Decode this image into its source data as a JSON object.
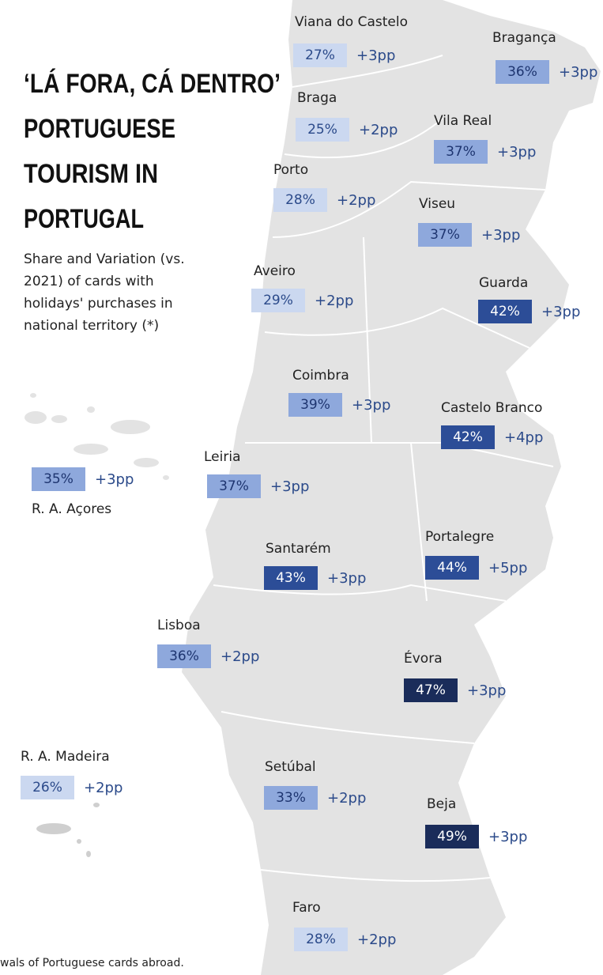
{
  "title": [
    "‘LÁ FORA, CÁ DENTRO’",
    "PORTUGUESE",
    "TOURISM IN",
    "PORTUGAL"
  ],
  "subtitle": [
    "Share and Variation (vs.",
    "2021) of cards with",
    "holidays' purchases in",
    "national territory (*)"
  ],
  "regions": [
    {
      "name": "Viana do Castelo",
      "share": 27,
      "share_label": "27%",
      "variation": "+3pp"
    },
    {
      "name": "Bragança",
      "share": 36,
      "share_label": "36%",
      "variation": "+3pp"
    },
    {
      "name": "Braga",
      "share": 25,
      "share_label": "25%",
      "variation": "+2pp"
    },
    {
      "name": "Vila Real",
      "share": 37,
      "share_label": "37%",
      "variation": "+3pp"
    },
    {
      "name": "Porto",
      "share": 28,
      "share_label": "28%",
      "variation": "+2pp"
    },
    {
      "name": "Viseu",
      "share": 37,
      "share_label": "37%",
      "variation": "+3pp"
    },
    {
      "name": "Aveiro",
      "share": 29,
      "share_label": "29%",
      "variation": "+2pp"
    },
    {
      "name": "Guarda",
      "share": 42,
      "share_label": "42%",
      "variation": "+3pp"
    },
    {
      "name": "Coimbra",
      "share": 39,
      "share_label": "39%",
      "variation": "+3pp"
    },
    {
      "name": "Castelo Branco",
      "share": 42,
      "share_label": "42%",
      "variation": "+4pp"
    },
    {
      "name": "R. A. Açores",
      "share": 35,
      "share_label": "35%",
      "variation": "+3pp"
    },
    {
      "name": "Leiria",
      "share": 37,
      "share_label": "37%",
      "variation": "+3pp"
    },
    {
      "name": "Santarém",
      "share": 43,
      "share_label": "43%",
      "variation": "+3pp"
    },
    {
      "name": "Portalegre",
      "share": 44,
      "share_label": "44%",
      "variation": "+5pp"
    },
    {
      "name": "Lisboa",
      "share": 36,
      "share_label": "36%",
      "variation": "+2pp"
    },
    {
      "name": "Évora",
      "share": 47,
      "share_label": "47%",
      "variation": "+3pp"
    },
    {
      "name": "R. A. Madeira",
      "share": 26,
      "share_label": "26%",
      "variation": "+2pp"
    },
    {
      "name": "Setúbal",
      "share": 33,
      "share_label": "33%",
      "variation": "+2pp"
    },
    {
      "name": "Beja",
      "share": 49,
      "share_label": "49%",
      "variation": "+3pp"
    },
    {
      "name": "Faro",
      "share": 28,
      "share_label": "28%",
      "variation": "+2pp"
    }
  ],
  "footnote": "wals of Portuguese cards abroad."
}
